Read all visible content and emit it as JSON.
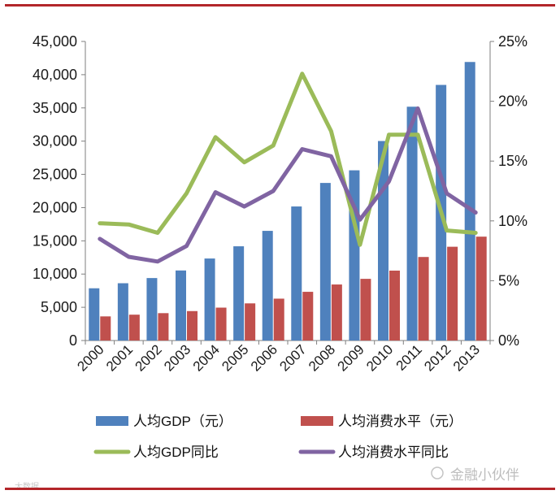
{
  "chart_data": {
    "type": "bar",
    "categories": [
      "2000",
      "2001",
      "2002",
      "2003",
      "2004",
      "2005",
      "2006",
      "2007",
      "2008",
      "2009",
      "2010",
      "2011",
      "2012",
      "2013"
    ],
    "series": [
      {
        "name": "人均GDP（元）",
        "type": "bar",
        "axis": "left",
        "color": "#4f81bd",
        "values": [
          7860,
          8620,
          9400,
          10540,
          12340,
          14180,
          16500,
          20170,
          23710,
          25610,
          30020,
          35180,
          38460,
          41910
        ]
      },
      {
        "name": "人均消费水平（元）",
        "type": "bar",
        "axis": "left",
        "color": "#c0504d",
        "values": [
          3630,
          3890,
          4120,
          4430,
          4950,
          5590,
          6300,
          7330,
          8430,
          9280,
          10520,
          12570,
          14110,
          15630
        ]
      },
      {
        "name": "人均GDP同比",
        "type": "line",
        "axis": "right",
        "color": "#9bbb59",
        "values": [
          9.8,
          9.7,
          9.0,
          12.3,
          17.0,
          14.9,
          16.3,
          22.3,
          17.5,
          8.0,
          17.2,
          17.2,
          9.2,
          9.0
        ]
      },
      {
        "name": "人均消费水平同比",
        "type": "line",
        "axis": "right",
        "color": "#8064a2",
        "values": [
          8.5,
          7.0,
          6.6,
          7.9,
          12.4,
          11.2,
          12.5,
          16.0,
          15.4,
          10.1,
          13.3,
          19.4,
          12.3,
          10.7
        ]
      }
    ],
    "yleft": {
      "min": 0,
      "max": 45000,
      "step": 5000,
      "tick_labels": [
        "0",
        "5,000",
        "10,000",
        "15,000",
        "20,000",
        "25,000",
        "30,000",
        "35,000",
        "40,000",
        "45,000"
      ]
    },
    "yright": {
      "min": 0,
      "max": 25,
      "step": 5,
      "tick_labels": [
        "0%",
        "5%",
        "10%",
        "15%",
        "20%",
        "25%"
      ]
    },
    "grid": false,
    "legend_position": "bottom"
  },
  "watermark": {
    "text": "金融小伙伴",
    "small_text": "大数据"
  },
  "colors": {
    "accent_rule": "#b3262a",
    "axis": "#7f7f7f"
  }
}
